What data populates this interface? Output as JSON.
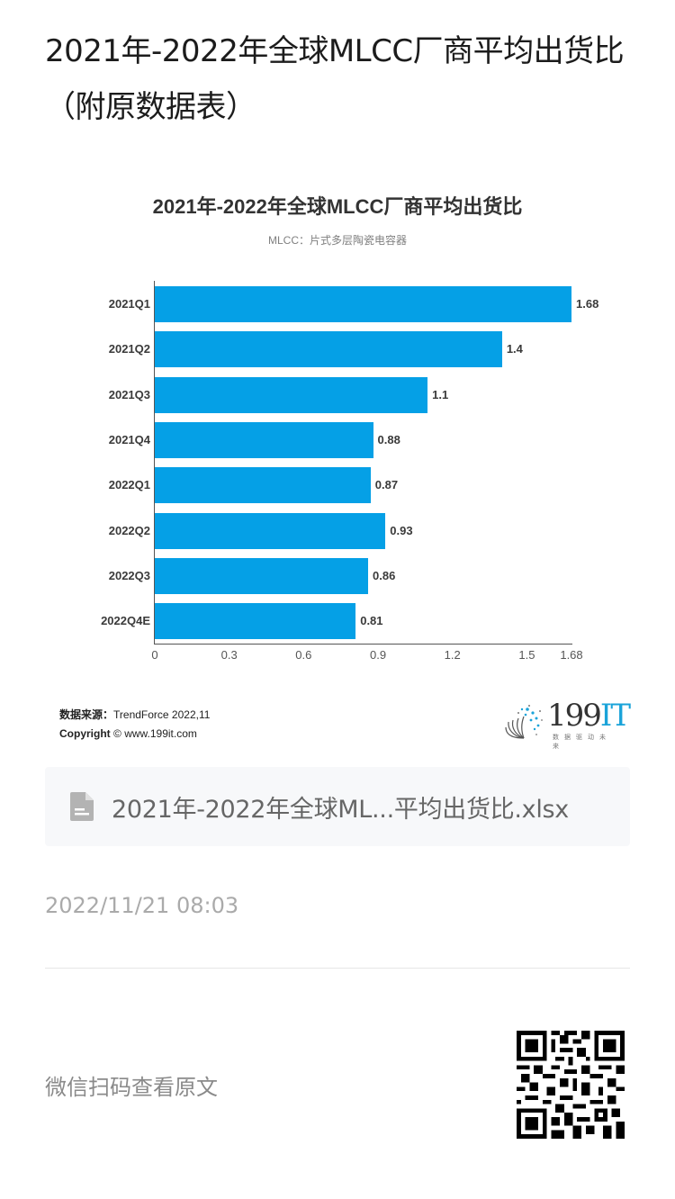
{
  "page": {
    "title": "2021年-2022年全球MLCC厂商平均出货比（附原数据表）"
  },
  "chart_card": {
    "title": "2021年-2022年全球MLCC厂商平均出货比",
    "subtitle": "MLCC：片式多层陶瓷电容器",
    "source_label": "数据来源：",
    "source_value": "TrendForce 2022,11",
    "copyright_label": "Copyright",
    "copyright_value": "© www.199it.com",
    "logo": {
      "number": "199",
      "suffix": "IT",
      "tagline": "数据驱动未来"
    },
    "bar_color": "#05a0e6"
  },
  "chart_data": {
    "type": "bar",
    "orientation": "horizontal",
    "title": "2021年-2022年全球MLCC厂商平均出货比",
    "subtitle": "MLCC：片式多层陶瓷电容器",
    "categories": [
      "2021Q1",
      "2021Q2",
      "2021Q3",
      "2021Q4",
      "2022Q1",
      "2022Q2",
      "2022Q3",
      "2022Q4E"
    ],
    "values": [
      1.68,
      1.4,
      1.1,
      0.88,
      0.87,
      0.93,
      0.86,
      0.81
    ],
    "value_labels": [
      "1.68",
      "1.4",
      "1.1",
      "0.88",
      "0.87",
      "0.93",
      "0.86",
      "0.81"
    ],
    "xlabel": "",
    "ylabel": "",
    "xlim": [
      0,
      1.68
    ],
    "x_ticks": [
      "0",
      "0.3",
      "0.6",
      "0.9",
      "1.2",
      "1.5",
      "1.68"
    ],
    "x_tick_values": [
      0,
      0.3,
      0.6,
      0.9,
      1.2,
      1.5,
      1.68
    ],
    "grid": false,
    "legend": "none",
    "source": "TrendForce 2022,11"
  },
  "attachment": {
    "icon": "file-icon",
    "file_name": "2021年-2022年全球ML...平均出货比.xlsx"
  },
  "meta": {
    "timestamp": "2022/11/21 08:03"
  },
  "footer": {
    "scan_label": "微信扫码查看原文",
    "qr_icon": "qr-code"
  }
}
